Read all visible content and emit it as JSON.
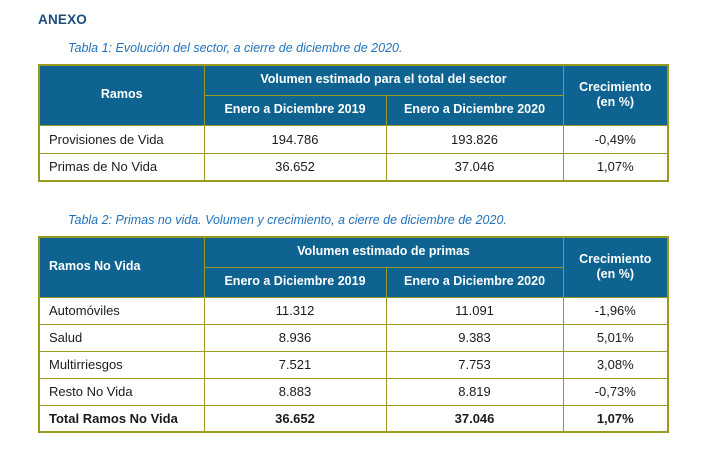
{
  "page": {
    "title": "ANEXO"
  },
  "theme": {
    "title_color": "#1f4e79",
    "caption_color": "#2272bb",
    "header_bg": "#0e6390",
    "header_text": "#ffffff",
    "border_color": "#98991e"
  },
  "table1": {
    "caption": "Tabla 1: Evolución del sector, a cierre de diciembre de 2020.",
    "header": {
      "ramos": "Ramos",
      "group": "Volumen estimado para el total del sector",
      "period_2019": "Enero a Diciembre 2019",
      "period_2020": "Enero a Diciembre 2020",
      "growth": "Crecimiento (en %)"
    },
    "rows": [
      {
        "label": "Provisiones de Vida",
        "v2019": "194.786",
        "v2020": "193.826",
        "growth": "-0,49%"
      },
      {
        "label": "Primas de No Vida",
        "v2019": "36.652",
        "v2020": "37.046",
        "growth": "1,07%"
      }
    ]
  },
  "table2": {
    "caption": "Tabla 2: Primas no vida. Volumen y crecimiento, a cierre de diciembre de 2020.",
    "header": {
      "ramos": "Ramos No Vida",
      "group": "Volumen estimado de primas",
      "period_2019": "Enero a Diciembre 2019",
      "period_2020": "Enero a Diciembre 2020",
      "growth": "Crecimiento (en %)"
    },
    "rows": [
      {
        "label": "Automóviles",
        "v2019": "11.312",
        "v2020": "11.091",
        "growth": "-1,96%"
      },
      {
        "label": "Salud",
        "v2019": "8.936",
        "v2020": "9.383",
        "growth": "5,01%"
      },
      {
        "label": "Multirriesgos",
        "v2019": "7.521",
        "v2020": "7.753",
        "growth": "3,08%"
      },
      {
        "label": "Resto No Vida",
        "v2019": "8.883",
        "v2020": "8.819",
        "growth": "-0,73%"
      },
      {
        "label": "Total Ramos No Vida",
        "v2019": "36.652",
        "v2020": "37.046",
        "growth": "1,07%"
      }
    ]
  }
}
